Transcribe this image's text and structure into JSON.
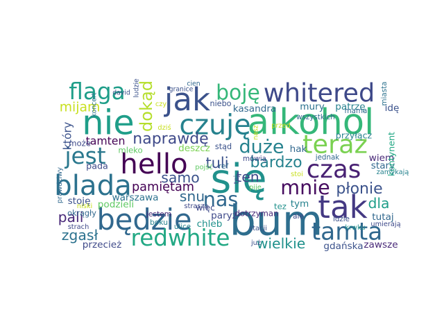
{
  "chart_data": {
    "type": "wordcloud",
    "title": "",
    "background": "#ffffff",
    "palette": "viridis",
    "words": [
      {
        "text": "bum",
        "weight": 1.0,
        "color": "#2e6e8e"
      },
      {
        "text": "się",
        "weight": 0.96,
        "color": "#21918c"
      },
      {
        "text": "alkohol",
        "weight": 0.86,
        "color": "#35b779"
      },
      {
        "text": "nie",
        "weight": 0.83,
        "color": "#1f9e89"
      },
      {
        "text": "jak",
        "weight": 0.76,
        "color": "#3b528b"
      },
      {
        "text": "tak",
        "weight": 0.76,
        "color": "#443983"
      },
      {
        "text": "będzie",
        "weight": 0.7,
        "color": "#31688e"
      },
      {
        "text": "hello",
        "weight": 0.68,
        "color": "#440154"
      },
      {
        "text": "blada",
        "weight": 0.68,
        "color": "#2c728e"
      },
      {
        "text": "czuję",
        "weight": 0.67,
        "color": "#26828e"
      },
      {
        "text": "whitered",
        "weight": 0.62,
        "color": "#3e4989"
      },
      {
        "text": "teraz",
        "weight": 0.62,
        "color": "#7ad151"
      },
      {
        "text": "czas",
        "weight": 0.6,
        "color": "#482173"
      },
      {
        "text": "tamta",
        "weight": 0.58,
        "color": "#31688e"
      },
      {
        "text": "redwhite",
        "weight": 0.55,
        "color": "#22a884"
      },
      {
        "text": "flaga",
        "weight": 0.55,
        "color": "#1f9e89"
      },
      {
        "text": "jest",
        "weight": 0.55,
        "color": "#2a788e"
      },
      {
        "text": "boję",
        "weight": 0.5,
        "color": "#35b779"
      },
      {
        "text": "mnie",
        "weight": 0.48,
        "color": "#470d60"
      },
      {
        "text": "nas",
        "weight": 0.48,
        "color": "#31688e"
      },
      {
        "text": "duże",
        "weight": 0.45,
        "color": "#26828e"
      },
      {
        "text": "dokąd",
        "weight": 0.4,
        "color": "#b5de2b"
      },
      {
        "text": "naprawdę",
        "weight": 0.36,
        "color": "#3e4989"
      },
      {
        "text": "bardzo",
        "weight": 0.36,
        "color": "#26828e"
      },
      {
        "text": "płonie",
        "weight": 0.36,
        "color": "#3b528b"
      },
      {
        "text": "tuli",
        "weight": 0.34,
        "color": "#3b528b"
      },
      {
        "text": "samo",
        "weight": 0.33,
        "color": "#3b528b"
      },
      {
        "text": "ten",
        "weight": 0.33,
        "color": "#3e4989"
      },
      {
        "text": "snu",
        "weight": 0.33,
        "color": "#31688e"
      },
      {
        "text": "pali",
        "weight": 0.33,
        "color": "#482878"
      },
      {
        "text": "dla",
        "weight": 0.33,
        "color": "#1f9e89"
      },
      {
        "text": "wielkie",
        "weight": 0.33,
        "color": "#21918c"
      },
      {
        "text": "zgasł",
        "weight": 0.33,
        "color": "#2c728e"
      },
      {
        "text": "mijam",
        "weight": 0.3,
        "color": "#c8e020"
      },
      {
        "text": "pamiętam",
        "weight": 0.28,
        "color": "#440154"
      },
      {
        "text": "tamten",
        "weight": 0.24,
        "color": "#440154"
      },
      {
        "text": "który",
        "weight": 0.24,
        "color": "#3b528b"
      },
      {
        "text": "deszcz",
        "weight": 0.2,
        "color": "#7ad151"
      },
      {
        "text": "kasandra",
        "weight": 0.2,
        "color": "#31688e"
      },
      {
        "text": "mury",
        "weight": 0.2,
        "color": "#2c728e"
      },
      {
        "text": "patrzę",
        "weight": 0.2,
        "color": "#26828e"
      },
      {
        "text": "idę",
        "weight": 0.2,
        "color": "#3b528b"
      },
      {
        "text": "hak",
        "weight": 0.2,
        "color": "#31688e"
      },
      {
        "text": "wiem",
        "weight": 0.2,
        "color": "#482878"
      },
      {
        "text": "stary",
        "weight": 0.2,
        "color": "#31688e"
      },
      {
        "text": "warszawa",
        "weight": 0.2,
        "color": "#2c728e"
      },
      {
        "text": "stoję",
        "weight": 0.2,
        "color": "#3b528b"
      },
      {
        "text": "podzieli",
        "weight": 0.2,
        "color": "#5ec962"
      },
      {
        "text": "paryż",
        "weight": 0.2,
        "color": "#3e4989"
      },
      {
        "text": "tym",
        "weight": 0.2,
        "color": "#26828e"
      },
      {
        "text": "tutaj",
        "weight": 0.2,
        "color": "#31688e"
      },
      {
        "text": "gdańska",
        "weight": 0.2,
        "color": "#3b528b"
      },
      {
        "text": "zawsze",
        "weight": 0.2,
        "color": "#482878"
      },
      {
        "text": "przecież",
        "weight": 0.2,
        "color": "#3e4989"
      },
      {
        "text": "chleb",
        "weight": 0.2,
        "color": "#21918c"
      },
      {
        "text": "pada",
        "weight": 0.18,
        "color": "#3e4989"
      },
      {
        "text": "przyłącz",
        "weight": 0.18,
        "color": "#26828e"
      },
      {
        "text": "kontynent",
        "weight": 0.18,
        "color": "#22a884"
      },
      {
        "text": "więc",
        "weight": 0.17,
        "color": "#3e4989"
      },
      {
        "text": "tez",
        "weight": 0.16,
        "color": "#21918c"
      },
      {
        "text": "dotrzyman",
        "weight": 0.16,
        "color": "#482878"
      },
      {
        "text": "mleko",
        "weight": 0.16,
        "color": "#5ec962"
      },
      {
        "text": "może",
        "weight": 0.16,
        "color": "#3e4989"
      },
      {
        "text": "okrągły",
        "weight": 0.15,
        "color": "#31688e"
      },
      {
        "text": "niebo",
        "weight": 0.15,
        "color": "#3b528b"
      },
      {
        "text": "stąd",
        "weight": 0.15,
        "color": "#3b528b"
      },
      {
        "text": "ref",
        "weight": 0.14,
        "color": "#31688e"
      },
      {
        "text": "boku",
        "weight": 0.14,
        "color": "#26828e"
      },
      {
        "text": "jestem",
        "weight": 0.14,
        "color": "#482878"
      },
      {
        "text": "ulice",
        "weight": 0.13,
        "color": "#26828e"
      },
      {
        "text": "ale",
        "weight": 0.14,
        "color": "#3e4989"
      },
      {
        "text": "idzie",
        "weight": 0.13,
        "color": "#3b528b"
      },
      {
        "text": "mówią",
        "weight": 0.13,
        "color": "#3e4989"
      },
      {
        "text": "jednak",
        "weight": 0.13,
        "color": "#31688e"
      },
      {
        "text": "wszystkich",
        "weight": 0.13,
        "color": "#31688e"
      },
      {
        "text": "mama",
        "weight": 0.13,
        "color": "#31688e"
      },
      {
        "text": "miasta",
        "weight": 0.13,
        "color": "#2c728e"
      },
      {
        "text": "umierają",
        "weight": 0.12,
        "color": "#3e4989"
      },
      {
        "text": "zamykają",
        "weight": 0.12,
        "color": "#26828e"
      },
      {
        "text": "stacji",
        "weight": 0.12,
        "color": "#3b528b"
      },
      {
        "text": "strach",
        "weight": 0.12,
        "color": "#3e4989"
      },
      {
        "text": "pojść",
        "weight": 0.12,
        "color": "#5ec962"
      },
      {
        "text": "krwku",
        "weight": 0.12,
        "color": "#21918c"
      },
      {
        "text": "stoi",
        "weight": 0.12,
        "color": "#c8e020"
      },
      {
        "text": "pije",
        "weight": 0.12,
        "color": "#5ec962"
      },
      {
        "text": "straszą",
        "weight": 0.12,
        "color": "#3e4989"
      },
      {
        "text": "prawdziwy",
        "weight": 0.12,
        "color": "#31688e"
      },
      {
        "text": "już",
        "weight": 0.12,
        "color": "#3b528b"
      },
      {
        "text": "niski",
        "weight": 0.12,
        "color": "#c8e020"
      },
      {
        "text": "tej",
        "weight": 0.12,
        "color": "#3e4989"
      },
      {
        "text": "dziś",
        "weight": 0.12,
        "color": "#c8e020"
      },
      {
        "text": "przed",
        "weight": 0.12,
        "color": "#c8e020"
      },
      {
        "text": "czy",
        "weight": 0.12,
        "color": "#c8e020"
      },
      {
        "text": "ludzie",
        "weight": 0.11,
        "color": "#3b528b"
      },
      {
        "text": "koncert",
        "weight": 0.11,
        "color": "#2c728e"
      },
      {
        "text": "david",
        "weight": 0.11,
        "color": "#3b528b"
      },
      {
        "text": "granice",
        "weight": 0.11,
        "color": "#3b528b"
      },
      {
        "text": "cien",
        "weight": 0.11,
        "color": "#31688e"
      },
      {
        "text": "nasz",
        "weight": 0.11,
        "color": "#c8e020"
      }
    ]
  }
}
